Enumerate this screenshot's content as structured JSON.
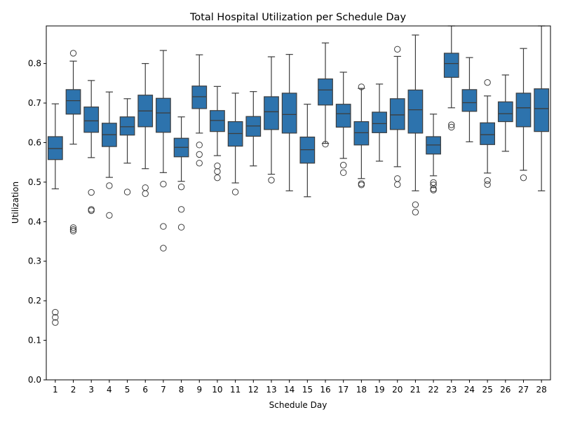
{
  "chart_data": {
    "type": "box",
    "title": "Total Hospital Utilization per Schedule Day",
    "xlabel": "Schedule Day",
    "ylabel": "Utilization",
    "ylim": [
      0.0,
      0.895
    ],
    "yticks": [
      0.0,
      0.1,
      0.2,
      0.3,
      0.4,
      0.5,
      0.6,
      0.7,
      0.8
    ],
    "ytick_labels": [
      "0.0",
      "0.1",
      "0.2",
      "0.3",
      "0.4",
      "0.5",
      "0.6",
      "0.7",
      "0.8"
    ],
    "grid": false,
    "legend": "none",
    "box_color": "#2d73ad",
    "line_color": "#3d3d3d",
    "categories": [
      "1",
      "2",
      "3",
      "4",
      "5",
      "6",
      "7",
      "8",
      "9",
      "10",
      "11",
      "12",
      "13",
      "14",
      "15",
      "16",
      "17",
      "18",
      "19",
      "20",
      "21",
      "22",
      "23",
      "24",
      "25",
      "26",
      "27",
      "28"
    ],
    "boxes": [
      {
        "whisker_low": 0.483,
        "q1": 0.557,
        "median": 0.585,
        "q3": 0.615,
        "whisker_high": 0.698,
        "outliers": [
          0.171,
          0.158,
          0.145
        ]
      },
      {
        "whisker_low": 0.596,
        "q1": 0.672,
        "median": 0.706,
        "q3": 0.734,
        "whisker_high": 0.806,
        "outliers": [
          0.826,
          0.385,
          0.38,
          0.376
        ]
      },
      {
        "whisker_low": 0.562,
        "q1": 0.626,
        "median": 0.655,
        "q3": 0.69,
        "whisker_high": 0.757,
        "outliers": [
          0.474,
          0.431,
          0.428
        ]
      },
      {
        "whisker_low": 0.512,
        "q1": 0.59,
        "median": 0.62,
        "q3": 0.649,
        "whisker_high": 0.728,
        "outliers": [
          0.491,
          0.416
        ]
      },
      {
        "whisker_low": 0.548,
        "q1": 0.619,
        "median": 0.64,
        "q3": 0.665,
        "whisker_high": 0.711,
        "outliers": [
          0.475
        ]
      },
      {
        "whisker_low": 0.534,
        "q1": 0.64,
        "median": 0.68,
        "q3": 0.72,
        "whisker_high": 0.8,
        "outliers": [
          0.486,
          0.471
        ]
      },
      {
        "whisker_low": 0.524,
        "q1": 0.626,
        "median": 0.675,
        "q3": 0.712,
        "whisker_high": 0.833,
        "outliers": [
          0.495,
          0.388,
          0.333
        ]
      },
      {
        "whisker_low": 0.502,
        "q1": 0.564,
        "median": 0.588,
        "q3": 0.611,
        "whisker_high": 0.665,
        "outliers": [
          0.488,
          0.431,
          0.386
        ]
      },
      {
        "whisker_low": 0.624,
        "q1": 0.686,
        "median": 0.716,
        "q3": 0.743,
        "whisker_high": 0.822,
        "outliers": [
          0.594,
          0.57,
          0.548
        ]
      },
      {
        "whisker_low": 0.567,
        "q1": 0.628,
        "median": 0.656,
        "q3": 0.681,
        "whisker_high": 0.742,
        "outliers": [
          0.541,
          0.527,
          0.511
        ]
      },
      {
        "whisker_low": 0.498,
        "q1": 0.591,
        "median": 0.623,
        "q3": 0.653,
        "whisker_high": 0.725,
        "outliers": [
          0.475
        ]
      },
      {
        "whisker_low": 0.541,
        "q1": 0.616,
        "median": 0.642,
        "q3": 0.666,
        "whisker_high": 0.729,
        "outliers": []
      },
      {
        "whisker_low": 0.52,
        "q1": 0.633,
        "median": 0.678,
        "q3": 0.716,
        "whisker_high": 0.817,
        "outliers": [
          0.505
        ]
      },
      {
        "whisker_low": 0.478,
        "q1": 0.624,
        "median": 0.671,
        "q3": 0.725,
        "whisker_high": 0.823,
        "outliers": []
      },
      {
        "whisker_low": 0.463,
        "q1": 0.548,
        "median": 0.582,
        "q3": 0.614,
        "whisker_high": 0.697,
        "outliers": []
      },
      {
        "whisker_low": 0.598,
        "q1": 0.695,
        "median": 0.733,
        "q3": 0.761,
        "whisker_high": 0.852,
        "outliers": [
          0.596
        ]
      },
      {
        "whisker_low": 0.56,
        "q1": 0.639,
        "median": 0.673,
        "q3": 0.697,
        "whisker_high": 0.778,
        "outliers": [
          0.543,
          0.524
        ]
      },
      {
        "whisker_low": 0.509,
        "q1": 0.594,
        "median": 0.625,
        "q3": 0.653,
        "whisker_high": 0.737,
        "outliers": [
          0.741,
          0.496,
          0.493
        ]
      },
      {
        "whisker_low": 0.553,
        "q1": 0.625,
        "median": 0.648,
        "q3": 0.677,
        "whisker_high": 0.748,
        "outliers": []
      },
      {
        "whisker_low": 0.539,
        "q1": 0.633,
        "median": 0.67,
        "q3": 0.711,
        "whisker_high": 0.818,
        "outliers": [
          0.836,
          0.509,
          0.494
        ]
      },
      {
        "whisker_low": 0.478,
        "q1": 0.624,
        "median": 0.683,
        "q3": 0.733,
        "whisker_high": 0.872,
        "outliers": [
          0.443,
          0.424
        ]
      },
      {
        "whisker_low": 0.516,
        "q1": 0.571,
        "median": 0.594,
        "q3": 0.615,
        "whisker_high": 0.672,
        "outliers": [
          0.499,
          0.493,
          0.483,
          0.48
        ]
      },
      {
        "whisker_low": 0.688,
        "q1": 0.765,
        "median": 0.8,
        "q3": 0.826,
        "whisker_high": 0.895,
        "outliers": [
          0.645,
          0.639
        ]
      },
      {
        "whisker_low": 0.602,
        "q1": 0.679,
        "median": 0.701,
        "q3": 0.734,
        "whisker_high": 0.815,
        "outliers": []
      },
      {
        "whisker_low": 0.523,
        "q1": 0.595,
        "median": 0.62,
        "q3": 0.65,
        "whisker_high": 0.718,
        "outliers": [
          0.752,
          0.504,
          0.494
        ]
      },
      {
        "whisker_low": 0.578,
        "q1": 0.653,
        "median": 0.673,
        "q3": 0.703,
        "whisker_high": 0.771,
        "outliers": []
      },
      {
        "whisker_low": 0.53,
        "q1": 0.64,
        "median": 0.688,
        "q3": 0.725,
        "whisker_high": 0.838,
        "outliers": [
          0.511
        ]
      },
      {
        "whisker_low": 0.478,
        "q1": 0.628,
        "median": 0.686,
        "q3": 0.736,
        "whisker_high": 0.895,
        "outliers": []
      }
    ]
  }
}
